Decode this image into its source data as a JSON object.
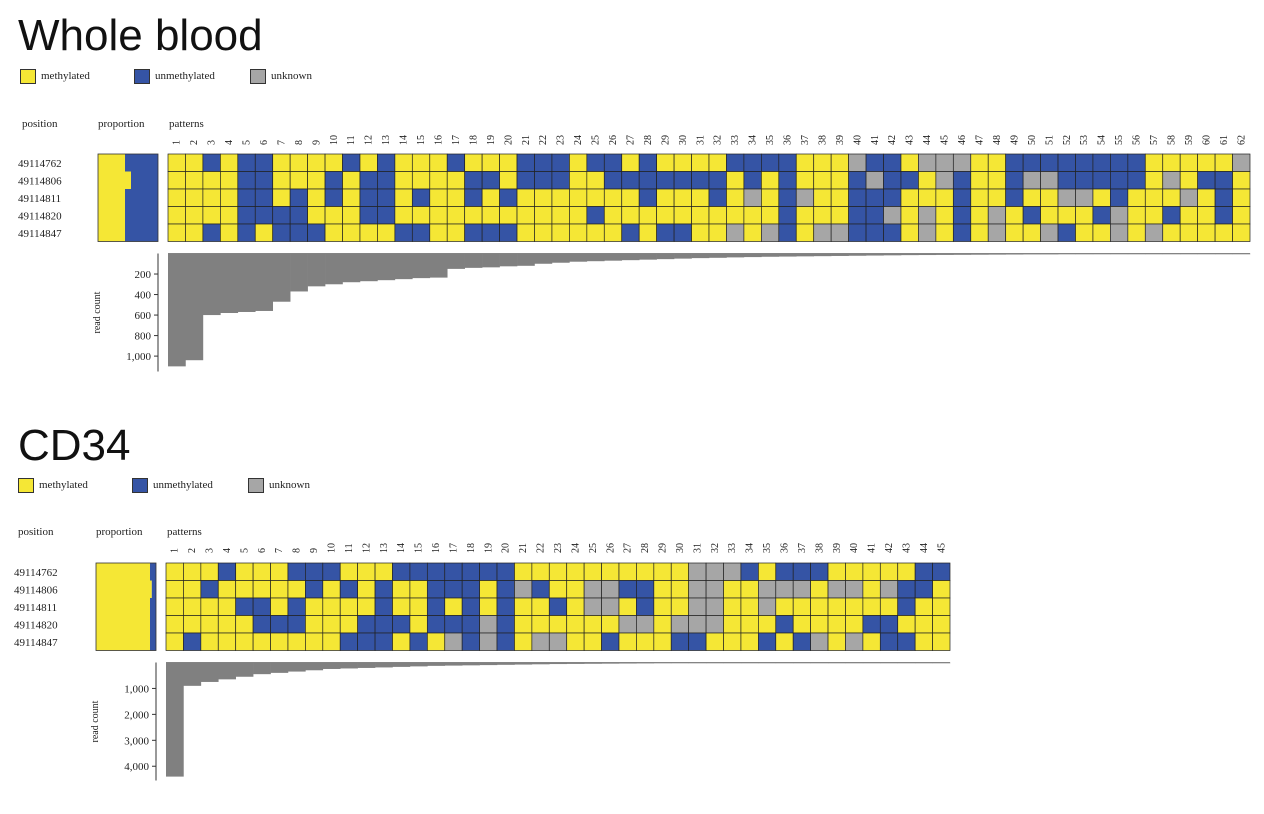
{
  "legend": {
    "methylated": "methylated",
    "unmethylated": "unmethylated",
    "unknown": "unknown"
  },
  "colors": {
    "methylated": "#f5e735",
    "unmethylated": "#3554a5",
    "unknown": "#a6a6a6",
    "histogram": "#808080"
  },
  "chart_data": [
    {
      "type": "heatmap",
      "title": "Whole blood",
      "column_headers": {
        "position": "position",
        "proportion": "proportion",
        "patterns": "patterns"
      },
      "positions": [
        "49114762",
        "49114806",
        "49114811",
        "49114820",
        "49114847"
      ],
      "proportion_methylated": [
        0.45,
        0.55,
        0.45,
        0.45,
        0.45
      ],
      "pattern_labels": [
        "1",
        "2",
        "3",
        "4",
        "5",
        "6",
        "7",
        "8",
        "9",
        "10",
        "11",
        "12",
        "13",
        "14",
        "15",
        "16",
        "17",
        "18",
        "19",
        "20",
        "21",
        "22",
        "23",
        "24",
        "25",
        "26",
        "27",
        "28",
        "29",
        "30",
        "31",
        "32",
        "33",
        "34",
        "35",
        "36",
        "37",
        "38",
        "39",
        "40",
        "41",
        "42",
        "43",
        "44",
        "45",
        "46",
        "47",
        "48",
        "49",
        "50",
        "51",
        "52",
        "53",
        "54",
        "55",
        "56",
        "57",
        "58",
        "59",
        "60",
        "61",
        "62"
      ],
      "patterns": [
        "MMMMM",
        "MMMMM",
        "UMMMU",
        "MMMMM",
        "UUUUU",
        "UUUUM",
        "MMMUU",
        "MMUUU",
        "MMMMU",
        "MUUMM",
        "UMMMM",
        "MUUUM",
        "UUUUM",
        "MMMMU",
        "MMUMU",
        "MMMMM",
        "UMMMM",
        "MUUMU",
        "MUMMU",
        "MMUMU",
        "UUMMM",
        "UUMMM",
        "UUMMM",
        "MMMMM",
        "UMMUM",
        "UUMMM",
        "MUMMU",
        "UUUMM",
        "MUMMU",
        "MUMMU",
        "MUMMM",
        "MUUMM",
        "UMMMK",
        "UUKMM",
        "UMMMK",
        "UUUUU",
        "MMKMM",
        "MMMMK",
        "MMMMK",
        "KUUUU",
        "UKUUU",
        "UUUKU",
        "MUMMM",
        "KMMKK",
        "KKMMM",
        "KUUUU",
        "MMMMM",
        "MMMKK",
        "UUUMM",
        "UKMUM",
        "UKMMK",
        "UUKMU",
        "UUKMM",
        "UUMUM",
        "UUUKK",
        "UUMMM",
        "MMMMK",
        "MKMUM",
        "MMKMM",
        "MUMMM",
        "MUUUM",
        "KMMMM"
      ],
      "pattern_values": [
        "M = methylated",
        "U = unmethylated",
        "K = unknown"
      ],
      "read_count": {
        "label": "read count",
        "ticks": [
          "200",
          "400",
          "600",
          "800",
          "1,000"
        ],
        "tick_values": [
          200,
          400,
          600,
          800,
          1000
        ],
        "ylim": [
          0,
          1150
        ],
        "values": [
          1100,
          1040,
          600,
          580,
          570,
          560,
          470,
          370,
          320,
          300,
          280,
          270,
          260,
          250,
          240,
          235,
          150,
          140,
          135,
          125,
          120,
          100,
          90,
          80,
          75,
          70,
          65,
          60,
          55,
          50,
          45,
          42,
          38,
          35,
          32,
          30,
          28,
          26,
          24,
          22,
          20,
          18,
          16,
          15,
          14,
          13,
          12,
          11,
          10,
          9,
          9,
          8,
          8,
          7,
          7,
          6,
          6,
          5,
          5,
          5,
          4,
          4
        ]
      }
    },
    {
      "type": "heatmap",
      "title": "CD34",
      "column_headers": {
        "position": "position",
        "proportion": "proportion",
        "patterns": "patterns"
      },
      "positions": [
        "49114762",
        "49114806",
        "49114811",
        "49114820",
        "49114847"
      ],
      "proportion_methylated": [
        0.9,
        0.93,
        0.9,
        0.9,
        0.9
      ],
      "pattern_labels": [
        "1",
        "2",
        "3",
        "4",
        "5",
        "6",
        "7",
        "8",
        "9",
        "10",
        "11",
        "12",
        "13",
        "14",
        "15",
        "16",
        "17",
        "18",
        "19",
        "20",
        "21",
        "22",
        "23",
        "24",
        "25",
        "26",
        "27",
        "28",
        "29",
        "30",
        "31",
        "32",
        "33",
        "34",
        "35",
        "36",
        "37",
        "38",
        "39",
        "40",
        "41",
        "42",
        "43",
        "44",
        "45"
      ],
      "patterns": [
        "MMMMM",
        "MMMMU",
        "MUMMM",
        "UMMMM",
        "MMUMM",
        "MMUUM",
        "MMMUM",
        "UMUUM",
        "UUMMM",
        "UMMMM",
        "MUMMU",
        "MMMUU",
        "MUUUU",
        "UMMUM",
        "UMMMU",
        "UUUUM",
        "UUMUK",
        "UUUUU",
        "UMMKK",
        "UUUUU",
        "MKMMM",
        "MUMMK",
        "MMUMK",
        "MMMMM",
        "MKKMM",
        "MKKMU",
        "MUMKM",
        "MUUKM",
        "MMMMM",
        "MMMKU",
        "KKKKU",
        "KKKKM",
        "KMMMM",
        "UMMMM",
        "MKKMU",
        "UKMUM",
        "UKMMU",
        "UMMMK",
        "MKMMM",
        "MKMMK",
        "MMMUM",
        "MKMUU",
        "MUUMU",
        "UUMMM",
        "UMMMM"
      ],
      "pattern_values": [
        "M = methylated",
        "U = unmethylated",
        "K = unknown"
      ],
      "read_count": {
        "label": "read count",
        "ticks": [
          "1,000",
          "2,000",
          "3,000",
          "4,000"
        ],
        "tick_values": [
          1000,
          2000,
          3000,
          4000
        ],
        "ylim": [
          0,
          4550
        ],
        "values": [
          4400,
          900,
          750,
          650,
          550,
          450,
          400,
          350,
          300,
          250,
          230,
          210,
          190,
          170,
          150,
          130,
          120,
          110,
          100,
          90,
          80,
          70,
          60,
          55,
          50,
          45,
          40,
          36,
          32,
          28,
          25,
          22,
          20,
          18,
          16,
          14,
          12,
          10,
          9,
          8,
          7,
          6,
          5,
          4,
          4
        ]
      }
    }
  ]
}
